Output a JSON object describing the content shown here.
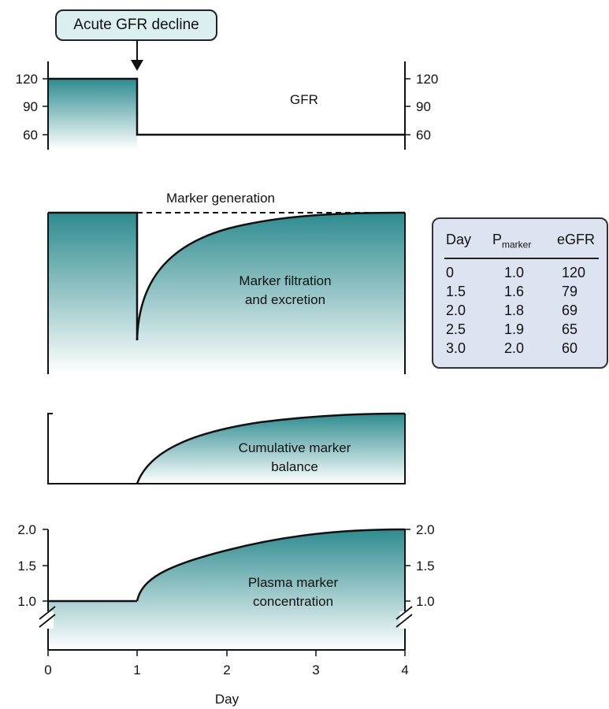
{
  "callout": {
    "label": "Acute GFR decline"
  },
  "panels": {
    "gfr": {
      "label": "GFR",
      "ticks_left": [
        "120",
        "90",
        "60"
      ],
      "ticks_right": [
        "120",
        "90",
        "60"
      ]
    },
    "marker_generation": {
      "label": "Marker generation"
    },
    "filtration": {
      "label_line1": "Marker filtration",
      "label_line2": "and excretion"
    },
    "balance": {
      "label_line1": "Cumulative marker",
      "label_line2": "balance"
    },
    "plasma": {
      "label_line1": "Plasma marker",
      "label_line2": "concentration",
      "ticks_left": [
        "2.0",
        "1.5",
        "1.0"
      ],
      "ticks_right": [
        "2.0",
        "1.5",
        "1.0"
      ]
    }
  },
  "x_axis": {
    "label": "Day",
    "ticks": [
      "0",
      "1",
      "2",
      "3",
      "4"
    ]
  },
  "table": {
    "headers": {
      "day": "Day",
      "p_main": "P",
      "p_sub": "marker",
      "egfr": "eGFR"
    },
    "rows": [
      {
        "day": "0",
        "p": "1.0",
        "egfr": "120"
      },
      {
        "day": "1.5",
        "p": "1.6",
        "egfr": "79"
      },
      {
        "day": "2.0",
        "p": "1.8",
        "egfr": "69"
      },
      {
        "day": "2.5",
        "p": "1.9",
        "egfr": "65"
      },
      {
        "day": "3.0",
        "p": "2.0",
        "egfr": "60"
      }
    ]
  },
  "colors": {
    "teal_dark": "#2e8b8f",
    "teal_light": "#ffffff",
    "table_bg": "#dde3f0",
    "callout_bg": "#dbeef0"
  },
  "chart_data": {
    "type": "area",
    "xlabel": "Day",
    "x_ticks": [
      0,
      1,
      2,
      3,
      4
    ],
    "series": [
      {
        "name": "GFR",
        "x": [
          0,
          1,
          1,
          4
        ],
        "values": [
          120,
          120,
          60,
          60
        ]
      },
      {
        "name": "Plasma marker concentration",
        "x": [
          0,
          1,
          1.5,
          2.0,
          2.5,
          3.0,
          4
        ],
        "values": [
          1.0,
          1.0,
          1.6,
          1.8,
          1.9,
          2.0,
          2.0
        ]
      }
    ]
  }
}
